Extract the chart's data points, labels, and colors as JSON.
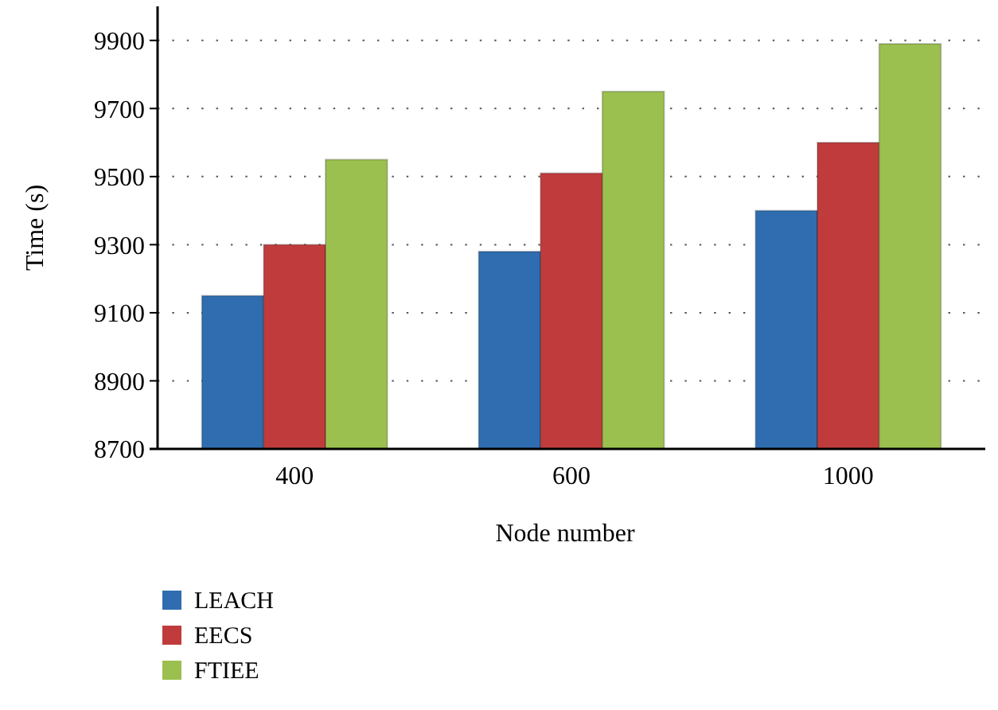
{
  "chart_data": {
    "type": "bar",
    "xlabel": "Node number",
    "ylabel": "Time (s)",
    "categories": [
      "400",
      "600",
      "1000"
    ],
    "series": [
      {
        "name": "LEACH",
        "color": "#2f6db0",
        "values": [
          9150,
          9280,
          9400
        ]
      },
      {
        "name": "EECS",
        "color": "#c03c3c",
        "values": [
          9300,
          9510,
          9600
        ]
      },
      {
        "name": "FTIEE",
        "color": "#9bc04f",
        "values": [
          9550,
          9750,
          9890
        ]
      }
    ],
    "ylim": [
      8700,
      10000
    ],
    "yticks": [
      8700,
      8900,
      9100,
      9300,
      9500,
      9700,
      9900
    ],
    "grid": "y",
    "legend": "bottom"
  }
}
